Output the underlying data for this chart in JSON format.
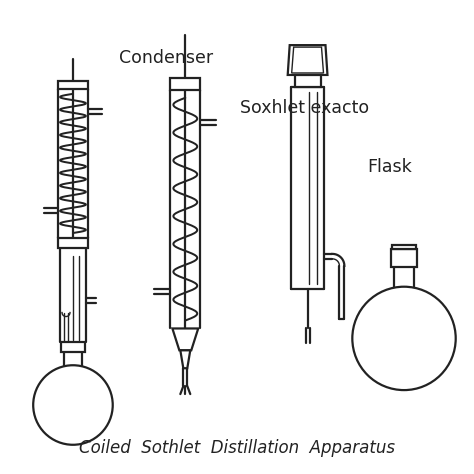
{
  "title": "Coiled  Sothlet  Distillation  Apparatus",
  "label1": "Condenser",
  "label2": "Soxhlet exacto",
  "label3": "Flask",
  "bg_color": "#ffffff",
  "line_color": "#222222",
  "lw": 1.6,
  "lw_thin": 1.0
}
